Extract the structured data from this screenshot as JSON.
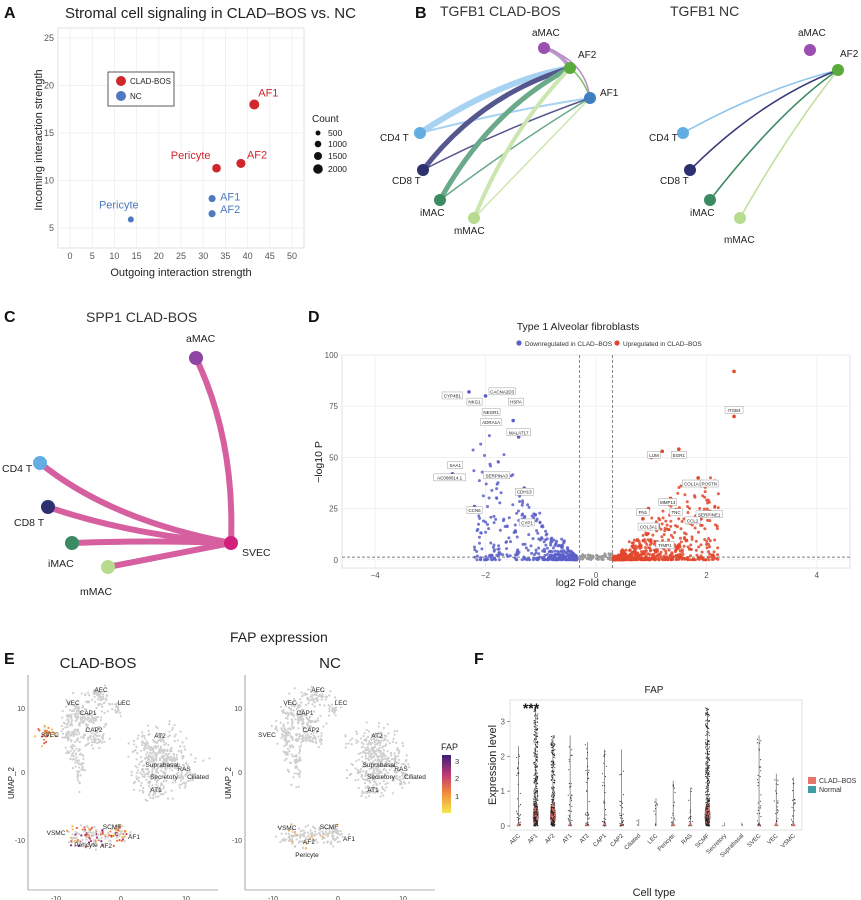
{
  "panel_letters": [
    "A",
    "B",
    "C",
    "D",
    "E",
    "F"
  ],
  "colors": {
    "clad": "#d0272c",
    "nc": "#4e79c0",
    "pink": "#d6609f",
    "cold": "#c8c8c8"
  },
  "panelA": {
    "title": "Stromal cell signaling in CLAD–BOS vs. NC",
    "legend": [
      {
        "label": "CLAD-BOS",
        "color": "#d0272c"
      },
      {
        "label": "NC",
        "color": "#4e79c0"
      }
    ],
    "count_legend": {
      "title": "Count",
      "items": [
        "500",
        "1000",
        "1500",
        "2000"
      ]
    }
  },
  "panelB": {
    "left_title": "TGFB1 CLAD-BOS",
    "right_title": "TGFB1 NC",
    "nodes": [
      {
        "name": "aMAC",
        "color": "#9b4fb0"
      },
      {
        "name": "AF2",
        "color": "#5aab3c"
      },
      {
        "name": "AF1",
        "color": "#3f7fbf"
      },
      {
        "name": "CD4 T",
        "color": "#62aee3"
      },
      {
        "name": "CD8 T",
        "color": "#2d2f6e"
      },
      {
        "name": "iMAC",
        "color": "#3c8a62"
      },
      {
        "name": "mMAC",
        "color": "#b7dc8f"
      }
    ]
  },
  "panelC": {
    "title": "SPP1 CLAD-BOS",
    "nodes": [
      {
        "name": "aMAC",
        "color": "#8e44a4"
      },
      {
        "name": "CD4 T",
        "color": "#62aee3"
      },
      {
        "name": "CD8 T",
        "color": "#2d2f6e"
      },
      {
        "name": "iMAC",
        "color": "#3c8a62"
      },
      {
        "name": "mMAC",
        "color": "#b7dc8f"
      },
      {
        "name": "SVEC",
        "color": "#d0207c"
      }
    ]
  },
  "panelD": {
    "title": "Type 1 Alveolar fibroblasts",
    "legend_down": "Downregulated in CLAD–BOS",
    "legend_up": "Upregulated in CLAD–BOS",
    "gene_labels_down": [
      "CYP4B1",
      "NKG1",
      "CACNA2D3",
      "HSPA",
      "NEGR1",
      "ADRA1A",
      "MALAT17",
      "SAA1",
      "AC008014.1",
      "SERPINA3",
      "CDH13",
      "CCN6",
      "CYP1"
    ],
    "gene_labels_up": [
      "ITGB4",
      "LUM",
      "EGR1",
      "COL1A1",
      "POSTN",
      "SERPINE1",
      "MMP14",
      "TNC",
      "CCL2",
      "TIMP1",
      "FN1",
      "COL3A1"
    ]
  },
  "panelE": {
    "header": "FAP expression",
    "left_title": "CLAD-BOS",
    "right_title": "NC",
    "left_labels": [
      "AEC",
      "LEC",
      "VEC",
      "CAP1",
      "SVEC",
      "CAP2",
      "AT2",
      "Suprabasal",
      "RAS",
      "Secretory",
      "Ciliated",
      "AT1",
      "VSMC",
      "SCMF",
      "Pericyte",
      "AF2",
      "AF1"
    ],
    "right_labels": [
      "AEC",
      "VEC",
      "LEC",
      "CAP1",
      "SVEC",
      "CAP2",
      "AT2",
      "Suprabasal",
      "RAS",
      "Secretory",
      "Ciliated",
      "AT1",
      "VSMC",
      "SCMF",
      "AF2",
      "AF1",
      "Pericyte"
    ],
    "colorbar_title": "FAP",
    "colorbar_ticks": [
      "3",
      "2",
      "1"
    ]
  },
  "panelF": {
    "title": "FAP",
    "significance": "***",
    "legend": [
      {
        "label": "CLAD–BOS",
        "color": "#e8736c"
      },
      {
        "label": "Normal",
        "color": "#3c9ea3"
      }
    ]
  },
  "chart_data": [
    {
      "type": "scatter",
      "title": "Stromal cell signaling in CLAD–BOS vs. NC",
      "xlabel": "Outgoing interaction strength",
      "ylabel": "Incoming interaction strength",
      "xlim": [
        0,
        50
      ],
      "ylim": [
        5,
        25
      ],
      "xticks": [
        "0",
        "5",
        "10",
        "15",
        "20",
        "25",
        "30",
        "35",
        "40",
        "45",
        "50"
      ],
      "yticks": [
        "5",
        "10",
        "15",
        "20",
        "25"
      ],
      "grid": true,
      "points": [
        {
          "label": "AF1",
          "group": "CLAD-BOS",
          "x": 41.5,
          "y": 18,
          "count": 1900
        },
        {
          "label": "Pericyte",
          "group": "CLAD-BOS",
          "x": 33,
          "y": 11.3,
          "count": 1400
        },
        {
          "label": "AF2",
          "group": "CLAD-BOS",
          "x": 38.5,
          "y": 11.8,
          "count": 1600
        },
        {
          "label": "AF1",
          "group": "NC",
          "x": 32,
          "y": 8.1,
          "count": 900
        },
        {
          "label": "AF2",
          "group": "NC",
          "x": 32,
          "y": 6.5,
          "count": 900
        },
        {
          "label": "Pericyte",
          "group": "NC",
          "x": 13.7,
          "y": 5.9,
          "count": 500
        }
      ]
    },
    {
      "type": "scatter",
      "title": "Type 1 Alveolar fibroblasts",
      "xlabel": "log2 Fold change",
      "ylabel": "−log10 P",
      "xlim": [
        -4.6,
        4.6
      ],
      "ylim": [
        -4,
        100
      ],
      "xticks": [
        "−4",
        "−2",
        "0",
        "2",
        "4"
      ],
      "yticks": [
        "0",
        "25",
        "50",
        "75",
        "100"
      ],
      "thresholds": {
        "fc": [
          -0.3,
          0.3
        ],
        "p": 1.3
      },
      "series": [
        {
          "name": "Downregulated in CLAD–BOS",
          "color": "#5a5fc8"
        },
        {
          "name": "Upregulated in CLAD–BOS",
          "color": "#e2462b"
        }
      ]
    },
    {
      "type": "violin",
      "title": "FAP",
      "xlabel": "Cell type",
      "ylabel": "Expression level",
      "ylim": [
        0,
        3.5
      ],
      "yticks": [
        "0",
        "1",
        "2",
        "3"
      ],
      "categories": [
        "AEC",
        "AF1",
        "AF2",
        "AT1",
        "AT2",
        "CAP1",
        "CAP2",
        "Ciliated",
        "LEC",
        "Pericyte",
        "RAS",
        "SCMF",
        "Secretory",
        "Suprabasal",
        "SVEC",
        "VEC",
        "VSMC"
      ],
      "max_values": [
        2.3,
        3.4,
        2.6,
        2.6,
        2.4,
        2.2,
        2.2,
        0.2,
        0.8,
        1.3,
        1.1,
        3.4,
        0.1,
        0.1,
        2.6,
        1.5,
        1.4
      ],
      "clad_bulge": [
        0.05,
        0.3,
        0.28,
        0.02,
        0.04,
        0.03,
        0.02,
        0,
        0,
        0.03,
        0.02,
        0.28,
        0,
        0,
        0.03,
        0.02,
        0.02
      ]
    }
  ]
}
